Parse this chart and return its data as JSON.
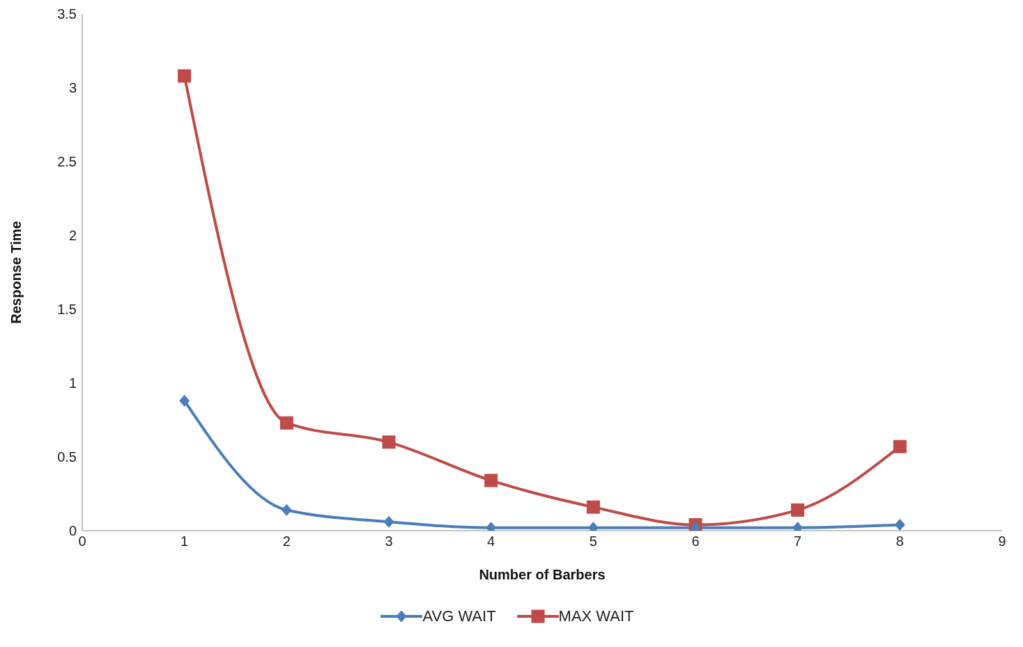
{
  "chart_data": {
    "type": "line",
    "xlabel": "Number of Barbers",
    "ylabel": "Response Time",
    "x": [
      1,
      2,
      3,
      4,
      5,
      6,
      7,
      8
    ],
    "series": [
      {
        "name": "AVG  WAIT",
        "color": "#4a7ebb",
        "marker": "diamond",
        "values": [
          0.88,
          0.14,
          0.06,
          0.02,
          0.02,
          0.02,
          0.02,
          0.04
        ]
      },
      {
        "name": "MAX  WAIT",
        "color": "#be4b48",
        "marker": "square",
        "values": [
          3.08,
          0.73,
          0.6,
          0.34,
          0.16,
          0.04,
          0.14,
          0.57
        ]
      }
    ],
    "xlim": [
      0,
      9
    ],
    "xticks": [
      0,
      1,
      2,
      3,
      4,
      5,
      6,
      7,
      8,
      9
    ],
    "ylim": [
      0,
      3.5
    ],
    "yticks": [
      0,
      0.5,
      1,
      1.5,
      2,
      2.5,
      3,
      3.5
    ],
    "grid": false,
    "legend": "bottom",
    "line_style": "solid"
  }
}
